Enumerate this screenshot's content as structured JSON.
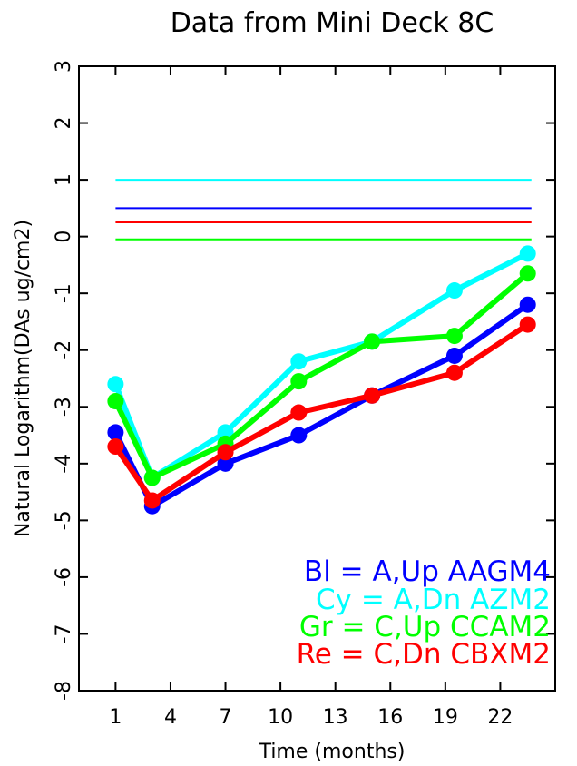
{
  "chart_data": {
    "type": "line",
    "title": "Data from Mini Deck 8C",
    "xlabel": "Time (months)",
    "ylabel": "Natural Logarithm(DAs ug/cm2)",
    "xlim": [
      -1,
      25
    ],
    "ylim": [
      -8,
      3
    ],
    "xticks": [
      1,
      4,
      7,
      10,
      13,
      16,
      19,
      22
    ],
    "xticklabels": [
      "1",
      "4",
      "7",
      "10",
      "13",
      "16",
      "19",
      "22"
    ],
    "yticks": [
      -8,
      -7,
      -6,
      -5,
      -4,
      -3,
      -2,
      -1,
      0,
      1,
      2,
      3
    ],
    "yticklabels": [
      "-8",
      "-7",
      "-6",
      "-5",
      "-4",
      "-3",
      "-2",
      "-1",
      "0",
      "1",
      "2",
      "3"
    ],
    "grid": false,
    "legend_position": "bottom-right",
    "series": [
      {
        "name": "Bl = A,Up AAGM4",
        "color": "#0000ff",
        "x": [
          1,
          3,
          7,
          11,
          15,
          19.5,
          23.5
        ],
        "y": [
          -3.45,
          -4.75,
          -4.0,
          -3.5,
          -2.8,
          -2.1,
          -1.2
        ],
        "hline": 0.5
      },
      {
        "name": "Cy = A,Dn AZM2",
        "color": "#00ffff",
        "x": [
          1,
          3,
          7,
          11,
          15,
          19.5,
          23.5
        ],
        "y": [
          -2.6,
          -4.25,
          -3.45,
          -2.2,
          -1.85,
          -0.95,
          -0.3
        ],
        "hline": 1.0
      },
      {
        "name": "Gr = C,Up CCAM2",
        "color": "#00ff00",
        "x": [
          1,
          3,
          7,
          11,
          15,
          19.5,
          23.5
        ],
        "y": [
          -2.9,
          -4.25,
          -3.65,
          -2.55,
          -1.85,
          -1.75,
          -0.65
        ],
        "hline": -0.05
      },
      {
        "name": "Re = C,Dn CBXM2",
        "color": "#ff0000",
        "x": [
          1,
          3,
          7,
          11,
          15,
          19.5,
          23.5
        ],
        "y": [
          -3.7,
          -4.65,
          -3.8,
          -3.1,
          -2.8,
          -2.4,
          -1.55
        ],
        "hline": 0.25
      }
    ]
  }
}
